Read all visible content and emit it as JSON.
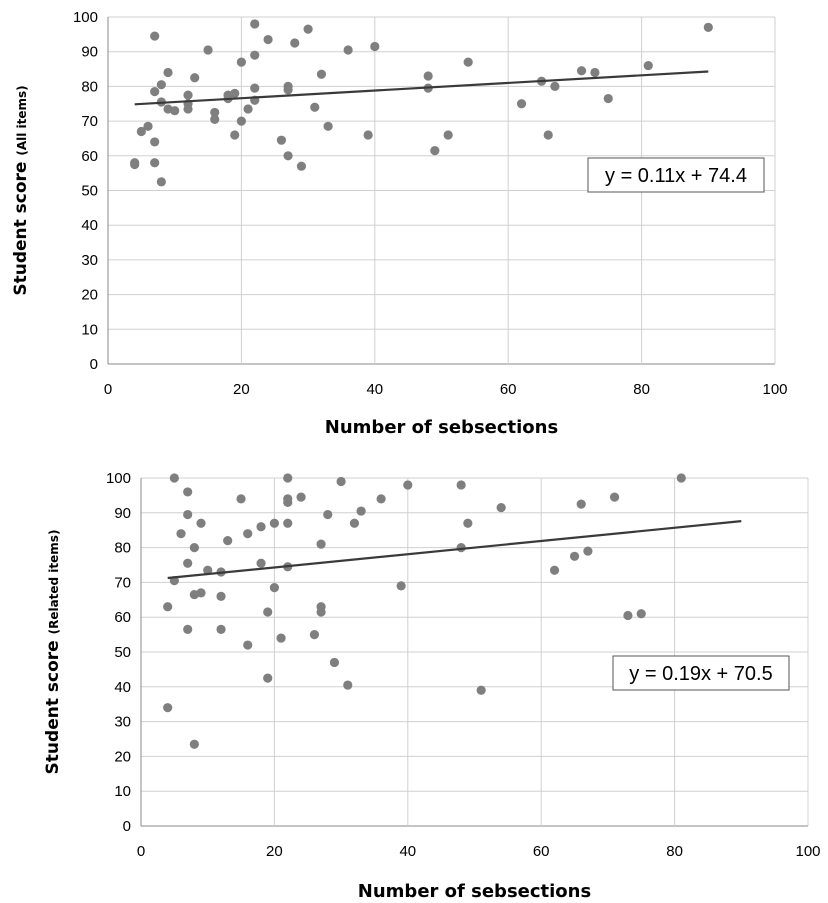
{
  "chart_data": [
    {
      "type": "scatter",
      "xlabel": "Number of sebsections",
      "ylabel_main": "Student score ",
      "ylabel_sub": "(All items)",
      "xlim": [
        0,
        100
      ],
      "ylim": [
        0,
        100
      ],
      "x_ticks": [
        0,
        20,
        40,
        60,
        80,
        100
      ],
      "y_ticks": [
        0,
        10,
        20,
        30,
        40,
        50,
        60,
        70,
        80,
        90,
        100
      ],
      "grid": true,
      "trendline": {
        "slope": 0.11,
        "intercept": 74.4,
        "x_range": [
          4,
          90
        ],
        "equation": "y = 0.11x + 74.4"
      },
      "points": [
        [
          4,
          58
        ],
        [
          4,
          57.5
        ],
        [
          5,
          67
        ],
        [
          6,
          68.5
        ],
        [
          7,
          94.5
        ],
        [
          7,
          78.5
        ],
        [
          7,
          64
        ],
        [
          7,
          58
        ],
        [
          8,
          52.5
        ],
        [
          8,
          80.5
        ],
        [
          8,
          75.5
        ],
        [
          9,
          84
        ],
        [
          9,
          73.5
        ],
        [
          10,
          73
        ],
        [
          12,
          77.5
        ],
        [
          12,
          75
        ],
        [
          12,
          73.5
        ],
        [
          13,
          82.5
        ],
        [
          15,
          90.5
        ],
        [
          16,
          72.5
        ],
        [
          16,
          70.5
        ],
        [
          18,
          77.5
        ],
        [
          18,
          76.5
        ],
        [
          19,
          78
        ],
        [
          19,
          66
        ],
        [
          20,
          87
        ],
        [
          20,
          70
        ],
        [
          21,
          73.5
        ],
        [
          22,
          98
        ],
        [
          22,
          89
        ],
        [
          22,
          79.5
        ],
        [
          22,
          76
        ],
        [
          24,
          93.5
        ],
        [
          26,
          64.5
        ],
        [
          27,
          80
        ],
        [
          27,
          79
        ],
        [
          27,
          60
        ],
        [
          28,
          92.5
        ],
        [
          29,
          57
        ],
        [
          30,
          96.5
        ],
        [
          31,
          74
        ],
        [
          32,
          83.5
        ],
        [
          33,
          68.5
        ],
        [
          36,
          90.5
        ],
        [
          39,
          66
        ],
        [
          40,
          91.5
        ],
        [
          48,
          83
        ],
        [
          48,
          79.5
        ],
        [
          49,
          61.5
        ],
        [
          51,
          66
        ],
        [
          54,
          87
        ],
        [
          62,
          75
        ],
        [
          65,
          81.5
        ],
        [
          66,
          66
        ],
        [
          67,
          80
        ],
        [
          71,
          84.5
        ],
        [
          73,
          84
        ],
        [
          75,
          76.5
        ],
        [
          81,
          86
        ],
        [
          90,
          97
        ]
      ]
    },
    {
      "type": "scatter",
      "xlabel": "Number of sebsections",
      "ylabel_main": "Student score ",
      "ylabel_sub": "(Related items)",
      "xlim": [
        0,
        100
      ],
      "ylim": [
        0,
        100
      ],
      "x_ticks": [
        0,
        20,
        40,
        60,
        80,
        100
      ],
      "y_ticks": [
        0,
        10,
        20,
        30,
        40,
        50,
        60,
        70,
        80,
        90,
        100
      ],
      "grid": true,
      "trendline": {
        "slope": 0.19,
        "intercept": 70.5,
        "x_range": [
          4,
          90
        ],
        "equation": "y = 0.19x + 70.5"
      },
      "points": [
        [
          4,
          34
        ],
        [
          4,
          63
        ],
        [
          5,
          70.5
        ],
        [
          5,
          100
        ],
        [
          6,
          84
        ],
        [
          7,
          96
        ],
        [
          7,
          89.5
        ],
        [
          7,
          75.5
        ],
        [
          7,
          56.5
        ],
        [
          8,
          80
        ],
        [
          8,
          66.5
        ],
        [
          8,
          23.5
        ],
        [
          9,
          87
        ],
        [
          9,
          67
        ],
        [
          10,
          73.5
        ],
        [
          12,
          73
        ],
        [
          12,
          66
        ],
        [
          12,
          56.5
        ],
        [
          13,
          82
        ],
        [
          15,
          94
        ],
        [
          16,
          84
        ],
        [
          16,
          52
        ],
        [
          18,
          86
        ],
        [
          18,
          75.5
        ],
        [
          19,
          61.5
        ],
        [
          19,
          42.5
        ],
        [
          20,
          87
        ],
        [
          20,
          68.5
        ],
        [
          21,
          54
        ],
        [
          22,
          100
        ],
        [
          22,
          94
        ],
        [
          22,
          93
        ],
        [
          22,
          87
        ],
        [
          22,
          74.5
        ],
        [
          24,
          94.5
        ],
        [
          26,
          55
        ],
        [
          27,
          81
        ],
        [
          27,
          63
        ],
        [
          27,
          61.5
        ],
        [
          28,
          89.5
        ],
        [
          29,
          47
        ],
        [
          30,
          99
        ],
        [
          31,
          40.5
        ],
        [
          32,
          87
        ],
        [
          33,
          90.5
        ],
        [
          36,
          94
        ],
        [
          39,
          69
        ],
        [
          40,
          98
        ],
        [
          48,
          98
        ],
        [
          48,
          80
        ],
        [
          49,
          87
        ],
        [
          51,
          39
        ],
        [
          54,
          91.5
        ],
        [
          62,
          73.5
        ],
        [
          65,
          77.5
        ],
        [
          66,
          92.5
        ],
        [
          67,
          79
        ],
        [
          71,
          94.5
        ],
        [
          73,
          60.5
        ],
        [
          75,
          61
        ],
        [
          81,
          100
        ]
      ]
    }
  ]
}
